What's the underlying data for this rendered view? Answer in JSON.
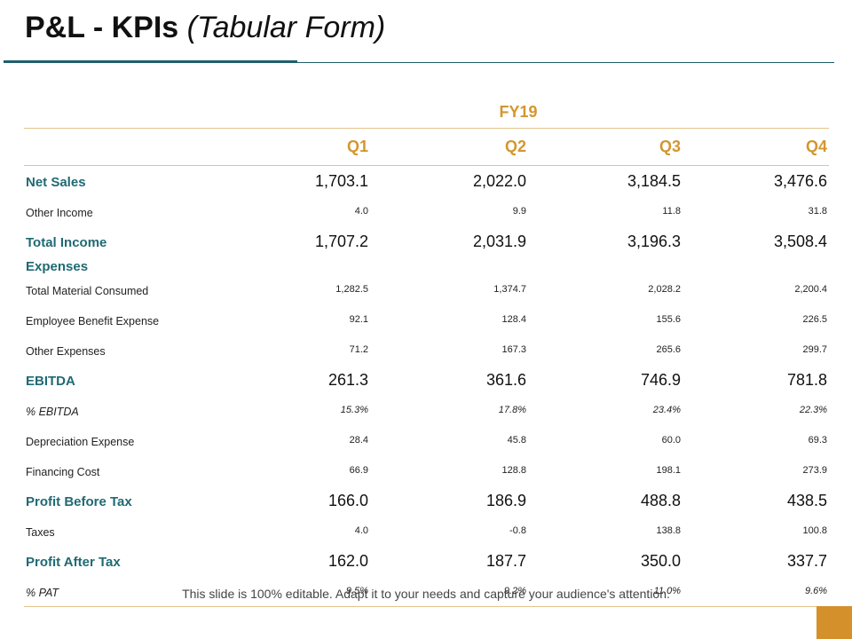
{
  "title": {
    "main": "P&L - KPIs",
    "sub": "(Tabular Form)"
  },
  "table": {
    "fiscal_year": "FY19",
    "columns": [
      "Q1",
      "Q2",
      "Q3",
      "Q4"
    ],
    "rows": [
      {
        "label": "Net Sales",
        "style": "major",
        "values": [
          "1,703.1",
          "2,022.0",
          "3,184.5",
          "3,476.6"
        ]
      },
      {
        "label": "Other Income",
        "style": "minor",
        "values": [
          "4.0",
          "9.9",
          "11.8",
          "31.8"
        ]
      },
      {
        "label": "Total Income",
        "style": "major",
        "values": [
          "1,707.2",
          "2,031.9",
          "3,196.3",
          "3,508.4"
        ]
      },
      {
        "label": "Expenses",
        "style": "head",
        "values": [
          "",
          "",
          "",
          ""
        ]
      },
      {
        "label": "Total Material Consumed",
        "style": "minor",
        "values": [
          "1,282.5",
          "1,374.7",
          "2,028.2",
          "2,200.4"
        ]
      },
      {
        "label": "Employee Benefit Expense",
        "style": "minor",
        "values": [
          "92.1",
          "128.4",
          "155.6",
          "226.5"
        ]
      },
      {
        "label": "Other Expenses",
        "style": "minor",
        "values": [
          "71.2",
          "167.3",
          "265.6",
          "299.7"
        ]
      },
      {
        "label": "EBITDA",
        "style": "major",
        "values": [
          "261.3",
          "361.6",
          "746.9",
          "781.8"
        ]
      },
      {
        "label": "% EBITDA",
        "style": "minor pct",
        "values": [
          "15.3%",
          "17.8%",
          "23.4%",
          "22.3%"
        ]
      },
      {
        "label": "Depreciation Expense",
        "style": "minor",
        "values": [
          "28.4",
          "45.8",
          "60.0",
          "69.3"
        ]
      },
      {
        "label": "Financing Cost",
        "style": "minor",
        "values": [
          "66.9",
          "128.8",
          "198.1",
          "273.9"
        ]
      },
      {
        "label": "Profit Before Tax",
        "style": "major",
        "values": [
          "166.0",
          "186.9",
          "488.8",
          "438.5"
        ]
      },
      {
        "label": "Taxes",
        "style": "minor",
        "values": [
          "4.0",
          "-0.8",
          "138.8",
          "100.8"
        ]
      },
      {
        "label": "Profit After Tax",
        "style": "major",
        "values": [
          "162.0",
          "187.7",
          "350.0",
          "337.7"
        ]
      },
      {
        "label": "% PAT",
        "style": "minor pct",
        "values": [
          "9.5%",
          "9.2%",
          "11.0%",
          "9.6%"
        ]
      }
    ]
  },
  "footer": "This slide is 100% editable. Adapt it to your needs and capture your audience's attention.",
  "colors": {
    "accent": "#d4962f",
    "teal": "#1f6a73",
    "rule": "#e3c48a",
    "corner": "#d4902a"
  }
}
